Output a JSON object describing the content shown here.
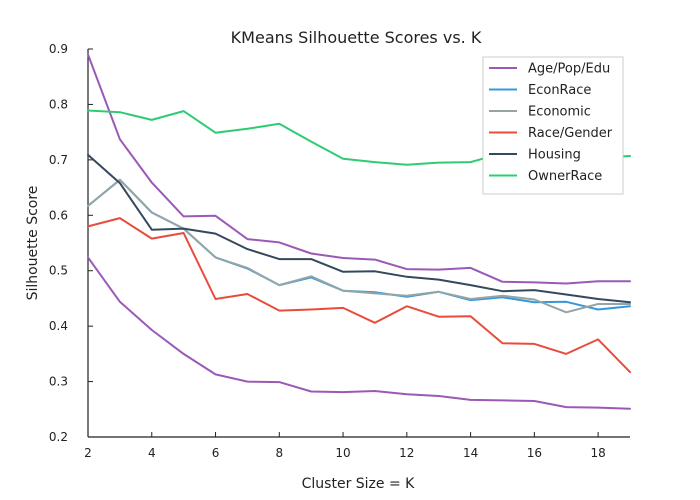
{
  "chart_data": {
    "type": "line",
    "title": "KMeans Silhouette Scores vs. K",
    "xlabel": "Cluster Size = K",
    "ylabel": "Silhouette Score",
    "xlim": [
      2,
      19
    ],
    "ylim": [
      0.2,
      0.9
    ],
    "xticks": [
      2,
      4,
      6,
      8,
      10,
      12,
      14,
      16,
      18
    ],
    "yticks": [
      0.2,
      0.3,
      0.4,
      0.5,
      0.6,
      0.7,
      0.8,
      0.9
    ],
    "grid": false,
    "legend_position": "top-right",
    "x": [
      2,
      3,
      4,
      5,
      6,
      7,
      8,
      9,
      10,
      11,
      12,
      13,
      14,
      15,
      16,
      17,
      18,
      19
    ],
    "series": [
      {
        "name": "Age/Pop/Edu",
        "color": "#9b59b6",
        "values": [
          0.89,
          0.737,
          0.659,
          0.598,
          0.599,
          0.557,
          0.551,
          0.531,
          0.523,
          0.52,
          0.503,
          0.502,
          0.505,
          0.48,
          0.479,
          0.477,
          0.481,
          0.481
        ]
      },
      {
        "name": "EconRace",
        "color": "#3498db",
        "values": [
          0.617,
          0.664,
          0.605,
          0.576,
          0.524,
          0.504,
          0.474,
          0.488,
          0.464,
          0.461,
          0.453,
          0.462,
          0.447,
          0.452,
          0.443,
          0.444,
          0.43,
          0.436
        ]
      },
      {
        "name": "Economic",
        "color": "#95a5a6",
        "values": [
          0.617,
          0.664,
          0.605,
          0.576,
          0.524,
          0.505,
          0.474,
          0.49,
          0.464,
          0.459,
          0.455,
          0.462,
          0.449,
          0.455,
          0.448,
          0.425,
          0.44,
          0.44
        ]
      },
      {
        "name": "Race/Gender",
        "color": "#e74c3c",
        "values": [
          0.58,
          0.595,
          0.558,
          0.568,
          0.449,
          0.458,
          0.428,
          0.43,
          0.433,
          0.406,
          0.436,
          0.417,
          0.418,
          0.369,
          0.368,
          0.35,
          0.376,
          0.317
        ]
      },
      {
        "name": "Housing",
        "color": "#34495e",
        "values": [
          0.709,
          0.658,
          0.574,
          0.576,
          0.567,
          0.539,
          0.521,
          0.521,
          0.498,
          0.499,
          0.489,
          0.484,
          0.474,
          0.463,
          0.465,
          0.457,
          0.449,
          0.443
        ]
      },
      {
        "name": "OwnerRace",
        "color": "#2ecc71",
        "values": [
          0.789,
          0.786,
          0.772,
          0.788,
          0.749,
          0.756,
          0.765,
          0.733,
          0.702,
          0.696,
          0.691,
          0.695,
          0.696,
          0.712,
          0.71,
          0.707,
          0.704,
          0.707
        ]
      },
      {
        "name": "",
        "color": "#9b59b6",
        "values": [
          0.524,
          0.444,
          0.393,
          0.35,
          0.313,
          0.3,
          0.299,
          0.282,
          0.281,
          0.283,
          0.277,
          0.274,
          0.267,
          0.266,
          0.265,
          0.254,
          0.253,
          0.251
        ]
      }
    ]
  }
}
